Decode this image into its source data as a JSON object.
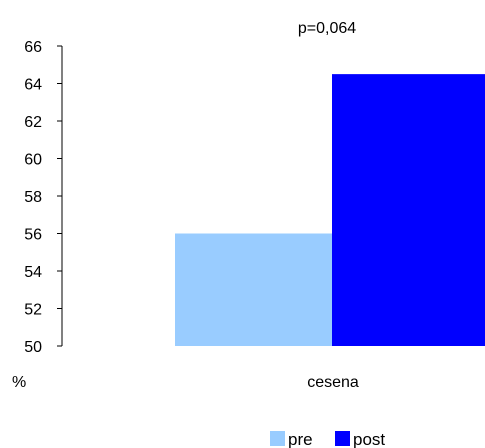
{
  "chart_data": {
    "type": "bar",
    "title": "p=0,064",
    "ylabel": "%",
    "categories": [
      "cesena"
    ],
    "series": [
      {
        "name": "pre",
        "values": [
          56
        ],
        "color": "#99ccff"
      },
      {
        "name": "post",
        "values": [
          64.5
        ],
        "color": "#0000ff"
      }
    ],
    "ylim": [
      50,
      66
    ],
    "yticks": [
      50,
      52,
      54,
      56,
      58,
      60,
      62,
      64,
      66
    ],
    "grid": false,
    "legend_position": "bottom-right"
  }
}
